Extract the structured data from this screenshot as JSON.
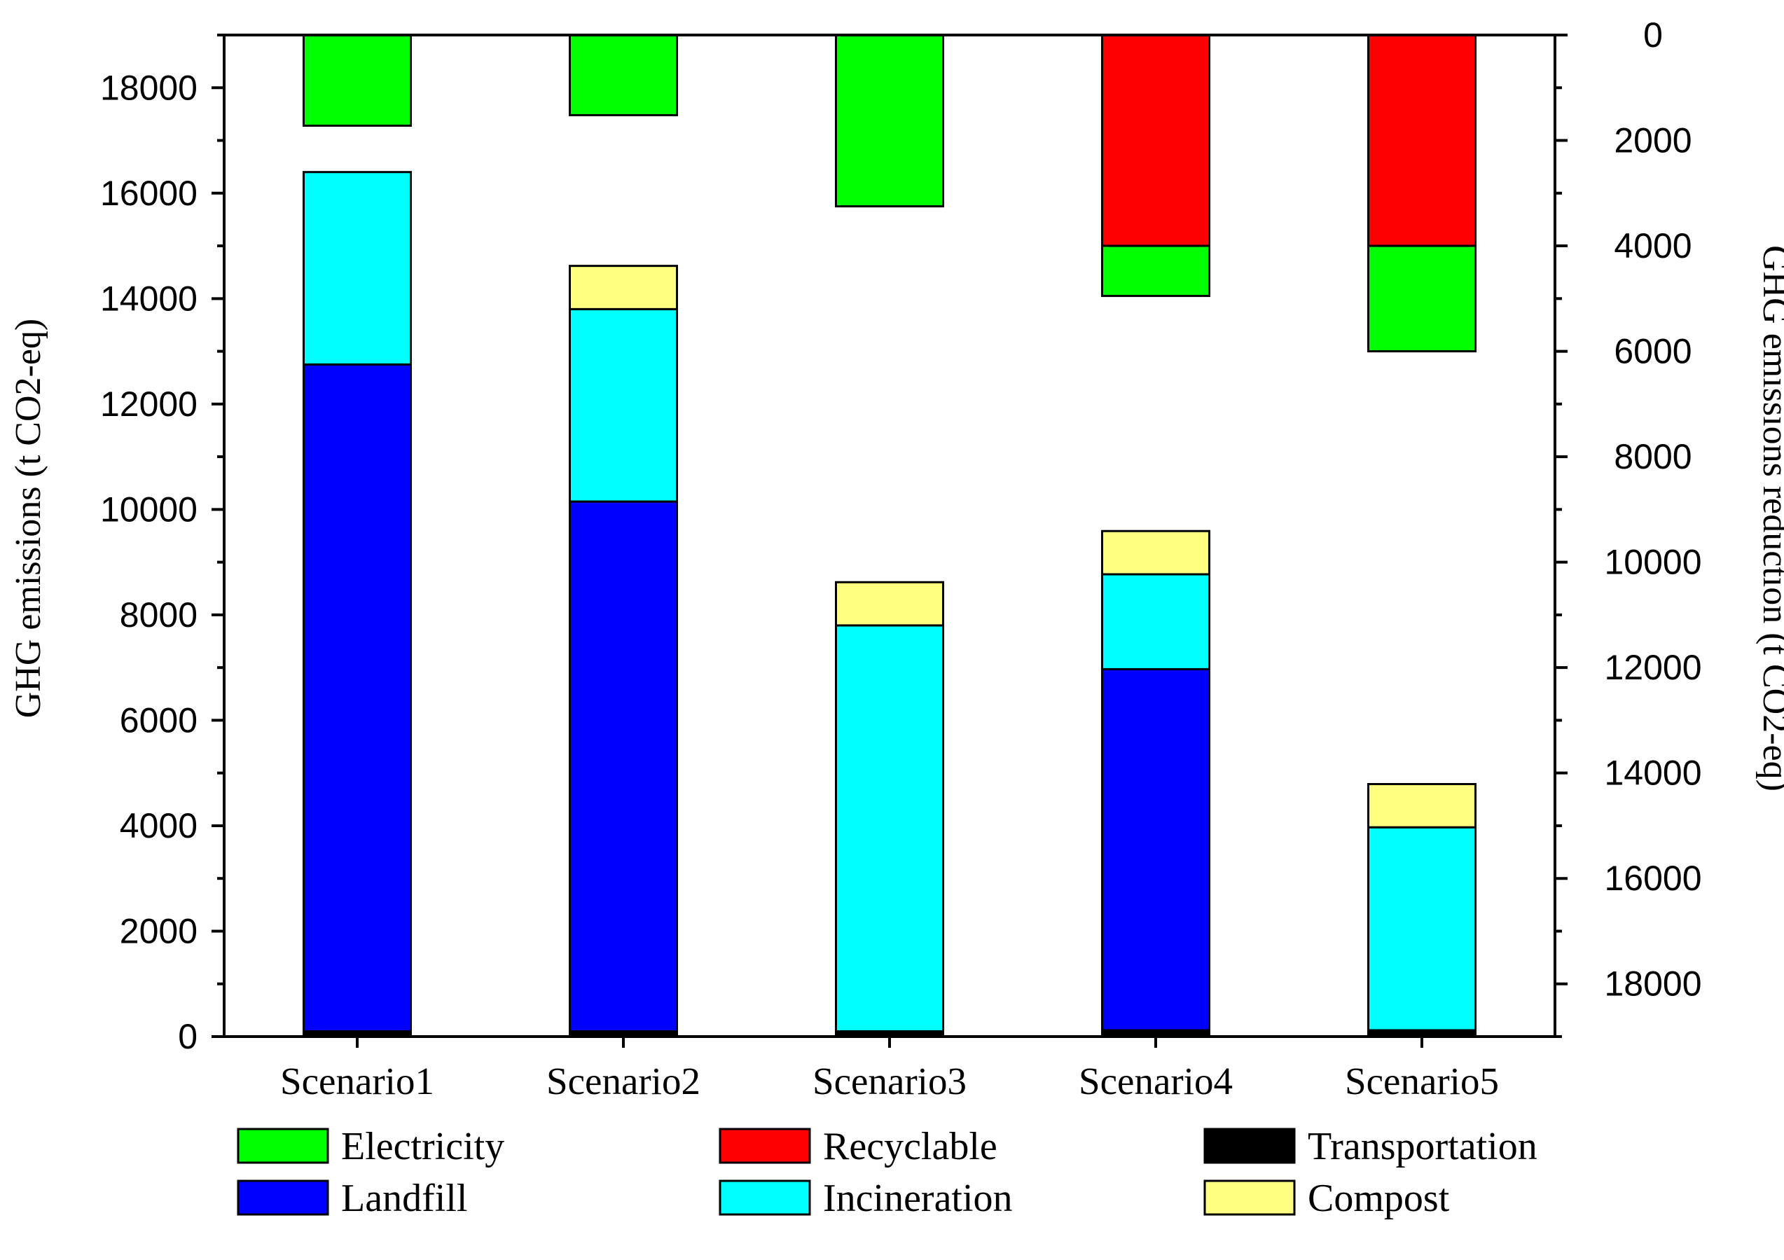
{
  "chart_data": {
    "type": "bar",
    "subtype": "stacked, dual-axis",
    "categories": [
      "Scenario1",
      "Scenario2",
      "Scenario3",
      "Scenario4",
      "Scenario5"
    ],
    "left_axis": {
      "label": "GHG emissions (t CO2-eq)",
      "ylim": [
        0,
        19000
      ],
      "ticks": [
        "0",
        "2000",
        "4000",
        "6000",
        "8000",
        "10000",
        "12000",
        "14000",
        "16000",
        "18000"
      ],
      "tick_values": [
        0,
        2000,
        4000,
        6000,
        8000,
        10000,
        12000,
        14000,
        16000,
        18000
      ]
    },
    "right_axis": {
      "label": "GHG emissions reduction (t CO2-eq)",
      "ylim": [
        19000,
        0
      ],
      "inverted": true,
      "ticks": [
        "0",
        "2000",
        "4000",
        "6000",
        "8000",
        "10000",
        "12000",
        "14000",
        "16000",
        "18000"
      ],
      "tick_values": [
        0,
        2000,
        4000,
        6000,
        8000,
        10000,
        12000,
        14000,
        16000,
        18000
      ]
    },
    "emission_series": [
      {
        "name": "Transportation",
        "color": "#000000",
        "values": [
          100,
          100,
          100,
          120,
          120
        ]
      },
      {
        "name": "Landfill",
        "color": "#0000ff",
        "values": [
          12650,
          10050,
          0,
          6850,
          0
        ]
      },
      {
        "name": "Incineration",
        "color": "#00ffff",
        "values": [
          3650,
          3650,
          7700,
          1800,
          3850
        ]
      },
      {
        "name": "Compost",
        "color": "#ffff80",
        "values": [
          0,
          820,
          820,
          820,
          820
        ]
      }
    ],
    "reduction_series": [
      {
        "name": "Recyclable",
        "color": "#ff0000",
        "values": [
          0,
          0,
          0,
          4000,
          4000
        ]
      },
      {
        "name": "Electricity",
        "color": "#00ff00",
        "values": [
          1720,
          1520,
          3250,
          950,
          2000
        ]
      }
    ],
    "legend": {
      "position": "bottom",
      "items": [
        {
          "label": "Electricity",
          "color": "#00ff00"
        },
        {
          "label": "Recyclable",
          "color": "#ff0000"
        },
        {
          "label": "Transportation",
          "color": "#000000"
        },
        {
          "label": "Landfill",
          "color": "#0000ff"
        },
        {
          "label": "Incineration",
          "color": "#00ffff"
        },
        {
          "label": "Compost",
          "color": "#ffff80"
        }
      ]
    },
    "grid": false
  }
}
